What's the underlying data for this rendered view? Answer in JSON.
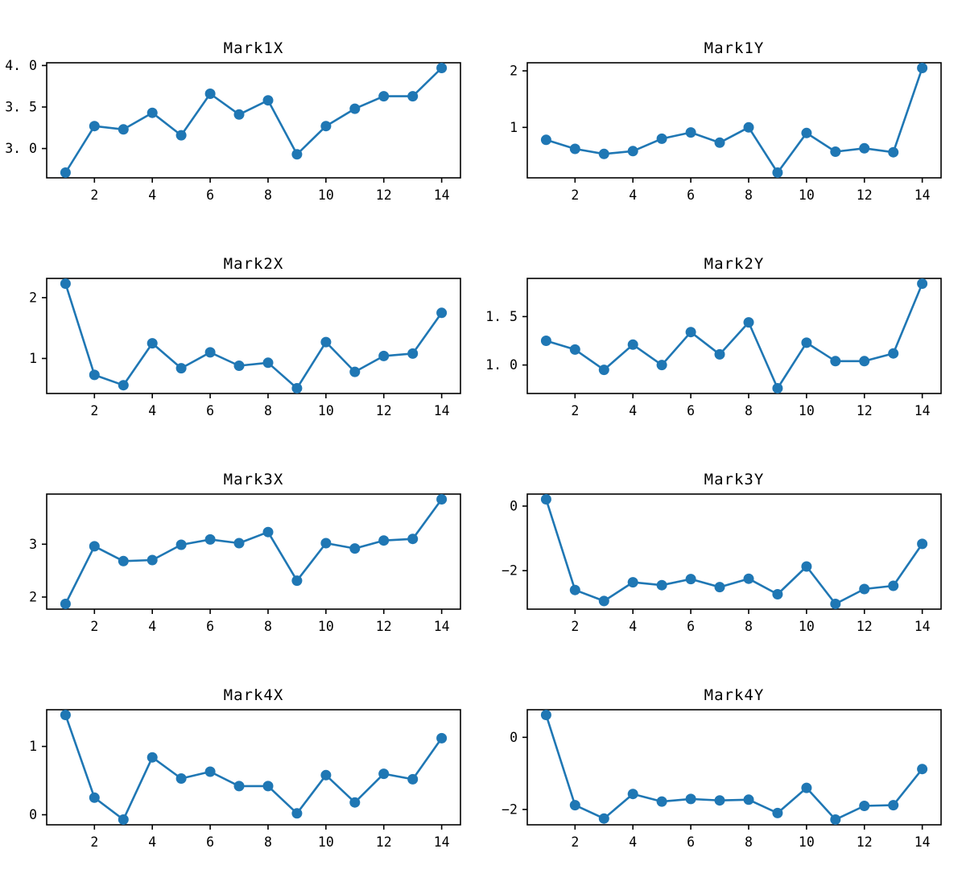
{
  "figure": {
    "background": "#ffffff",
    "series_color": "#1f77b4",
    "frame_color": "#000000",
    "text_color": "#000000"
  },
  "axes": {
    "x": [
      1,
      2,
      3,
      4,
      5,
      6,
      7,
      8,
      9,
      10,
      11,
      12,
      13,
      14
    ],
    "xlim": [
      0.35,
      14.65
    ],
    "x_ticks": [
      {
        "value": 2,
        "label": "2"
      },
      {
        "value": 4,
        "label": "4"
      },
      {
        "value": 6,
        "label": "6"
      },
      {
        "value": 8,
        "label": "8"
      },
      {
        "value": 10,
        "label": "10"
      },
      {
        "value": 12,
        "label": "12"
      },
      {
        "value": 14,
        "label": "14"
      }
    ]
  },
  "chart_data": [
    {
      "type": "line",
      "title": "Mark1X",
      "values": [
        2.71,
        3.27,
        3.23,
        3.43,
        3.16,
        3.66,
        3.41,
        3.58,
        2.93,
        3.27,
        3.48,
        3.63,
        3.63,
        3.97
      ],
      "ylim": [
        2.647,
        4.033
      ],
      "y_ticks": [
        {
          "value": 3.0,
          "label": "3. 0"
        },
        {
          "value": 3.5,
          "label": "3. 5"
        },
        {
          "value": 4.0,
          "label": "4. 0"
        }
      ]
    },
    {
      "type": "line",
      "title": "Mark1Y",
      "values": [
        0.78,
        0.62,
        0.53,
        0.58,
        0.8,
        0.91,
        0.73,
        1.0,
        0.2,
        0.9,
        0.57,
        0.63,
        0.56,
        2.05
      ],
      "ylim": [
        0.108,
        2.143
      ],
      "y_ticks": [
        {
          "value": 1,
          "label": "1"
        },
        {
          "value": 2,
          "label": "2"
        }
      ]
    },
    {
      "type": "line",
      "title": "Mark2X",
      "values": [
        2.23,
        0.73,
        0.56,
        1.25,
        0.84,
        1.1,
        0.88,
        0.93,
        0.51,
        1.27,
        0.78,
        1.04,
        1.08,
        1.75
      ],
      "ylim": [
        0.424,
        2.316
      ],
      "y_ticks": [
        {
          "value": 1,
          "label": "1"
        },
        {
          "value": 2,
          "label": "2"
        }
      ]
    },
    {
      "type": "line",
      "title": "Mark2Y",
      "values": [
        1.25,
        1.16,
        0.95,
        1.21,
        1.0,
        1.34,
        1.11,
        1.44,
        0.76,
        1.23,
        1.04,
        1.04,
        1.12,
        1.84
      ],
      "ylim": [
        0.706,
        1.894
      ],
      "y_ticks": [
        {
          "value": 1.0,
          "label": "1. 0"
        },
        {
          "value": 1.5,
          "label": "1. 5"
        }
      ]
    },
    {
      "type": "line",
      "title": "Mark3X",
      "values": [
        1.87,
        2.96,
        2.68,
        2.7,
        2.99,
        3.09,
        3.02,
        3.23,
        2.31,
        3.02,
        2.92,
        3.07,
        3.1,
        3.85
      ],
      "ylim": [
        1.771,
        3.949
      ],
      "y_ticks": [
        {
          "value": 2,
          "label": "2"
        },
        {
          "value": 3,
          "label": "3"
        }
      ]
    },
    {
      "type": "line",
      "title": "Mark3Y",
      "values": [
        0.21,
        -2.6,
        -2.94,
        -2.36,
        -2.45,
        -2.26,
        -2.51,
        -2.25,
        -2.73,
        -1.87,
        -3.03,
        -2.57,
        -2.47,
        -1.17
      ],
      "ylim": [
        -3.192,
        0.372
      ],
      "y_ticks": [
        {
          "value": -2,
          "label": "−2"
        },
        {
          "value": 0,
          "label": "0"
        }
      ]
    },
    {
      "type": "line",
      "title": "Mark4X",
      "values": [
        1.46,
        0.25,
        -0.07,
        0.84,
        0.53,
        0.63,
        0.42,
        0.42,
        0.02,
        0.58,
        0.18,
        0.6,
        0.52,
        1.12
      ],
      "ylim": [
        -0.147,
        1.537
      ],
      "y_ticks": [
        {
          "value": 0,
          "label": "0"
        },
        {
          "value": 1,
          "label": "1"
        }
      ]
    },
    {
      "type": "line",
      "title": "Mark4Y",
      "values": [
        0.62,
        -1.88,
        -2.25,
        -1.57,
        -1.78,
        -1.71,
        -1.75,
        -1.73,
        -2.1,
        -1.4,
        -2.28,
        -1.9,
        -1.88,
        -0.88
      ],
      "ylim": [
        -2.425,
        0.765
      ],
      "y_ticks": [
        {
          "value": -2,
          "label": "−2"
        },
        {
          "value": 0,
          "label": "0"
        }
      ]
    }
  ]
}
